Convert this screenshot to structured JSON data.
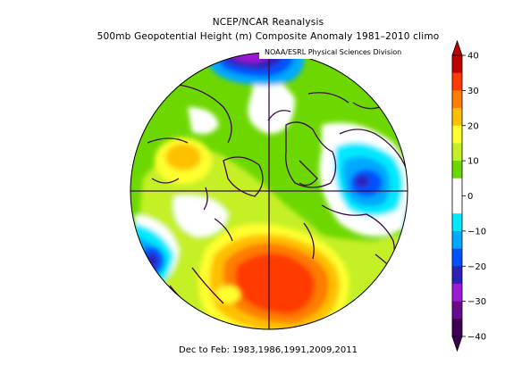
{
  "title_line1": "NCEP/NCAR Reanalysis",
  "title_line2": "500mb Geopotential Height (m) Composite Anomaly 1981–2010 climo",
  "source_badge": "NOAA/ESRL Physical Sciences Division",
  "footer": "Dec to Feb: 1983,1986,1991,2009,2011",
  "colorbar": {
    "labels": [
      "40",
      "30",
      "20",
      "10",
      "0",
      "−10",
      "−20",
      "−30",
      "−40"
    ],
    "colors": [
      "#c10000",
      "#ff3b00",
      "#ff7d00",
      "#ffc000",
      "#ffff2e",
      "#c5f026",
      "#6dd800",
      "#ffffff",
      "#ffffff",
      "#00eaff",
      "#00a9ff",
      "#0051ff",
      "#2c22b8",
      "#a019d6",
      "#6a0a8c",
      "#3c0054"
    ]
  },
  "map": {
    "projection": "north-polar-stereographic",
    "variable": "500mb geopotential height anomaly",
    "units": "m",
    "colors": {
      "green": "#6dd800",
      "lightgreen": "#c5f026",
      "yellow": "#ffff2e",
      "gold": "#ffc000",
      "orange": "#ff7d00",
      "redorange": "#ff3b00",
      "red": "#c10000",
      "cyan": "#00eaff",
      "skyblue": "#00a9ff",
      "blue": "#0051ff",
      "indigo": "#2c22b8",
      "purple": "#a019d6",
      "darkpurple": "#6a0a8c",
      "coast": "#3b0a48"
    }
  }
}
